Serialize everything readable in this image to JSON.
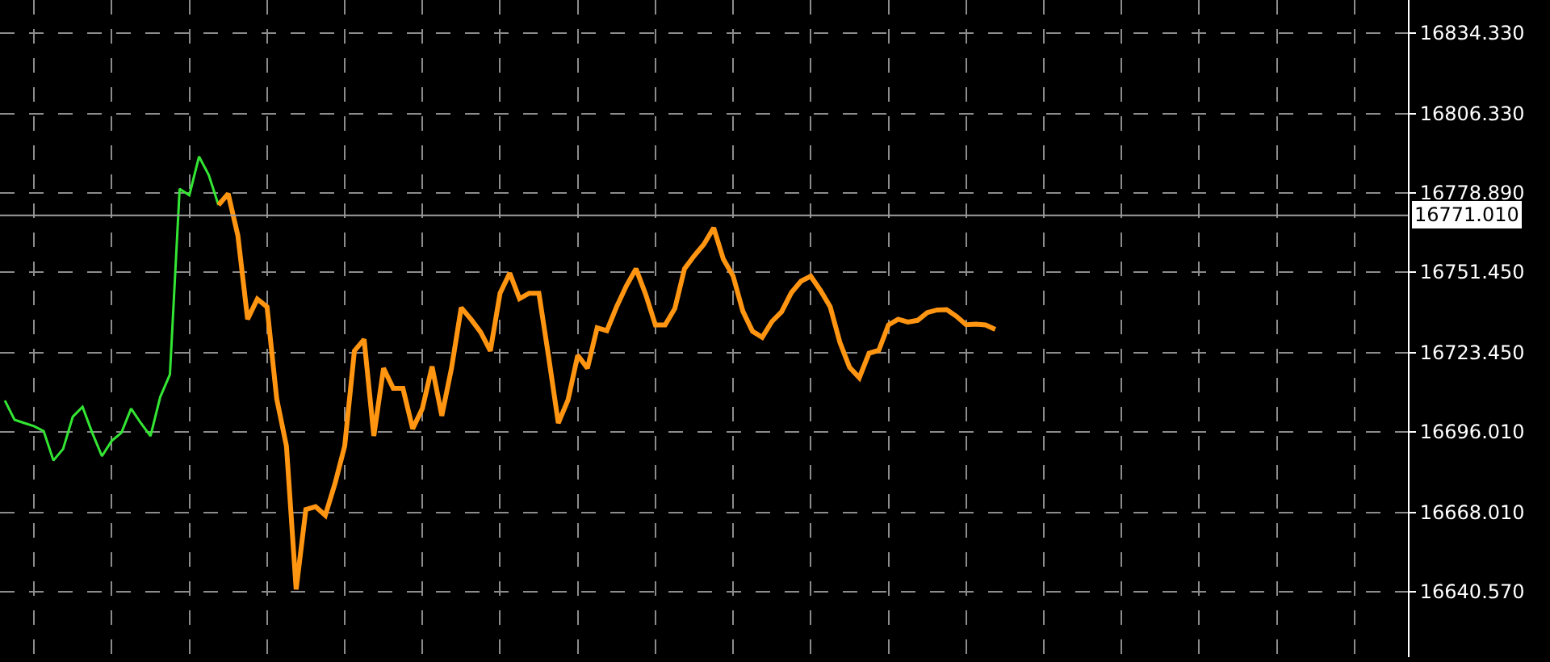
{
  "chart_data": {
    "type": "line",
    "categories": [
      null,
      null,
      null,
      null,
      null,
      null,
      null,
      null,
      null,
      null,
      null,
      null,
      null,
      null,
      null,
      null,
      null,
      null,
      null,
      null,
      null,
      null,
      null,
      null,
      null,
      null,
      null,
      null,
      null,
      null,
      null,
      null,
      null,
      null,
      null,
      null,
      null,
      null,
      null,
      null,
      null,
      null,
      null,
      null,
      null,
      null,
      null,
      null,
      null,
      null,
      null,
      null,
      null,
      null,
      null,
      null,
      null,
      null,
      null,
      null,
      null,
      null,
      null,
      null,
      null,
      null,
      null,
      null,
      null,
      null,
      null,
      null,
      null,
      null,
      null,
      null,
      null,
      null,
      null,
      null,
      null,
      null,
      null,
      null,
      null,
      null,
      null,
      null,
      null,
      null,
      null,
      null,
      null,
      null,
      null,
      null,
      null,
      null,
      null,
      null,
      null,
      null,
      null,
      null,
      null,
      null,
      null,
      null,
      null,
      null,
      null,
      null,
      null,
      null,
      null,
      null,
      null,
      null,
      null,
      null,
      null,
      null,
      null,
      null,
      null,
      null,
      null,
      null,
      null,
      null,
      null,
      null,
      null,
      null,
      null,
      null,
      null,
      null,
      null,
      null,
      null,
      null,
      null,
      null,
      null
    ],
    "series": [
      {
        "color": "#33e633",
        "values": [
          16706.8,
          16700.1,
          16699.0,
          16697.9,
          16696.2,
          16686.0,
          16690.0,
          16701.2,
          16704.6,
          16695.6,
          16687.5,
          16692.8,
          16695.6,
          16704.0,
          16699.0,
          16694.5,
          16708.0,
          16715.8,
          16780.2,
          16778.0,
          16791.4,
          16785.0,
          16774.6,
          null,
          null,
          null,
          null,
          null,
          null,
          null,
          null,
          null,
          null,
          null,
          null,
          null,
          null,
          null,
          null,
          null,
          null,
          null,
          null,
          null,
          null,
          null,
          null,
          null,
          null,
          null,
          null,
          null,
          null,
          null,
          null,
          null,
          null,
          null,
          null,
          null,
          null,
          null,
          null,
          null,
          null,
          null,
          null,
          null,
          null,
          null,
          null,
          null,
          null,
          null,
          null,
          null,
          null,
          null,
          null,
          null,
          null,
          null,
          null,
          null,
          null,
          null,
          null,
          null,
          null,
          null,
          null,
          null,
          null,
          null,
          null,
          null,
          null,
          null,
          null,
          null,
          null,
          null,
          null,
          null,
          null,
          null,
          null,
          null,
          null,
          null,
          null,
          null,
          null,
          null,
          null,
          null,
          null,
          null,
          null,
          null,
          null,
          null,
          null,
          null,
          null,
          null,
          null,
          null,
          null,
          null,
          null,
          null,
          null,
          null,
          null,
          null,
          null,
          null,
          null,
          null,
          null,
          null,
          null,
          null,
          null
        ]
      },
      {
        "color": "#ff9511",
        "values": [
          null,
          null,
          null,
          null,
          null,
          null,
          null,
          null,
          null,
          null,
          null,
          null,
          null,
          null,
          null,
          null,
          null,
          null,
          null,
          null,
          null,
          null,
          16774.6,
          16778.5,
          16764.0,
          16735.0,
          16742.0,
          16739.3,
          16707.4,
          16691.0,
          16641.3,
          16669.0,
          16670.0,
          16667.0,
          16678.0,
          16691.0,
          16724.0,
          16728.0,
          16694.5,
          16718.0,
          16711.0,
          16711.0,
          16697.0,
          16704.0,
          16718.6,
          16701.5,
          16718.0,
          16739.0,
          16735.0,
          16730.5,
          16724.0,
          16744.0,
          16751.0,
          16742.1,
          16744.0,
          16744.0,
          16722.0,
          16699.0,
          16707.0,
          16722.5,
          16718.0,
          16732.0,
          16731.0,
          16739.3,
          16746.5,
          16752.5,
          16743.6,
          16733.0,
          16733.0,
          16738.7,
          16752.5,
          16757.0,
          16761.0,
          16766.7,
          16755.8,
          16750.0,
          16737.8,
          16730.8,
          16728.7,
          16734.2,
          16737.6,
          16744.2,
          16748.2,
          16749.9,
          16745.0,
          16739.3,
          16727.0,
          16718.3,
          16714.7,
          16723.2,
          16724.2,
          16733.0,
          16735.0,
          16734.0,
          16734.6,
          16737.3,
          16738.2,
          16738.3,
          16736.0,
          16733.1,
          16733.3,
          16733.0,
          16731.5,
          null,
          null,
          null,
          null,
          null,
          null,
          null,
          null,
          null,
          null,
          null,
          null,
          null,
          null,
          null,
          null,
          null,
          null,
          null,
          null,
          null,
          null,
          null,
          null,
          null,
          null,
          null,
          null,
          null,
          null,
          null,
          null,
          null,
          null,
          null,
          null,
          null,
          null,
          null,
          null,
          null,
          null
        ]
      }
    ],
    "ylim": [
      16617.8,
      16845.7
    ],
    "yticks": [
      {
        "value": 16834.33,
        "label": "16834.330"
      },
      {
        "value": 16806.33,
        "label": "16806.330"
      },
      {
        "value": 16778.89,
        "label": "16778.890"
      },
      {
        "value": 16751.45,
        "label": "16751.450"
      },
      {
        "value": 16723.45,
        "label": "16723.450"
      },
      {
        "value": 16696.01,
        "label": "16696.010"
      },
      {
        "value": 16668.01,
        "label": "16668.010"
      },
      {
        "value": 16640.57,
        "label": "16640.570"
      }
    ],
    "ref_lines": [
      {
        "axis": "y",
        "value": 16771.01,
        "label": "16771.010",
        "color": "#a0a0a4"
      }
    ],
    "tick_labels": "y",
    "grid": true,
    "marker": "none",
    "line_style": "solid"
  }
}
